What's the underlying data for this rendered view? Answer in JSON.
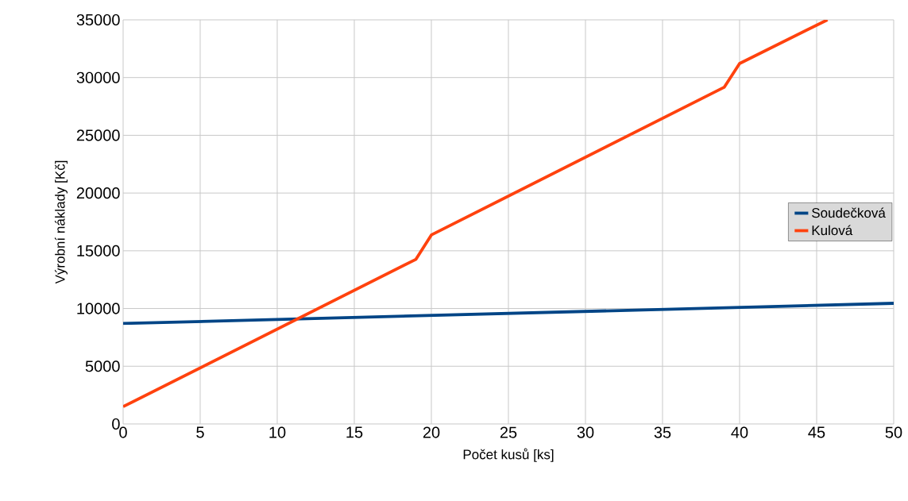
{
  "chart_data": {
    "type": "line",
    "xlabel": "Počet kusů [ks]",
    "ylabel": "Výrobní náklady [Kč]",
    "xlim": [
      0,
      50
    ],
    "xticks": [
      0,
      5,
      10,
      15,
      20,
      25,
      30,
      35,
      40,
      45,
      50
    ],
    "ylim": [
      0,
      35000
    ],
    "yticks": [
      0,
      5000,
      10000,
      15000,
      20000,
      25000,
      30000,
      35000
    ],
    "grid": true,
    "legend": "right",
    "series": [
      {
        "name": "Soudečková",
        "color": "#004586",
        "x": [
          0,
          50
        ],
        "values": [
          8700,
          10450
        ]
      },
      {
        "name": "Kulová",
        "color": "#ff420e",
        "x": [
          0,
          19,
          20,
          39,
          40,
          45.7
        ],
        "values": [
          1500,
          14260,
          16370,
          29160,
          31220,
          35000
        ]
      }
    ]
  }
}
